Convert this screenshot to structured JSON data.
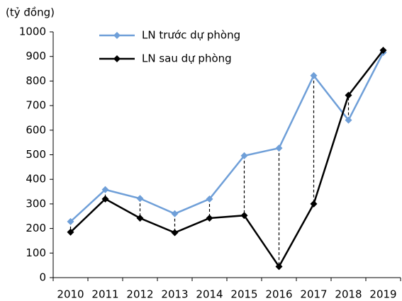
{
  "chart_data": {
    "type": "line",
    "y_label": "(tỷ đồng)",
    "categories": [
      "2010",
      "2011",
      "2012",
      "2013",
      "2014",
      "2015",
      "2016",
      "2017",
      "2018",
      "2019"
    ],
    "series": [
      {
        "name": "LN trước dự phòng",
        "color": "#6f9fd8",
        "values": [
          228,
          358,
          322,
          260,
          320,
          496,
          527,
          822,
          641,
          916
        ]
      },
      {
        "name": "LN sau dự phòng",
        "color": "#000000",
        "values": [
          185,
          320,
          242,
          183,
          242,
          253,
          45,
          300,
          742,
          925
        ]
      }
    ],
    "ylim": [
      0,
      1000
    ],
    "yticks": [
      0,
      100,
      200,
      300,
      400,
      500,
      600,
      700,
      800,
      900,
      1000
    ],
    "legend": "top-left"
  }
}
